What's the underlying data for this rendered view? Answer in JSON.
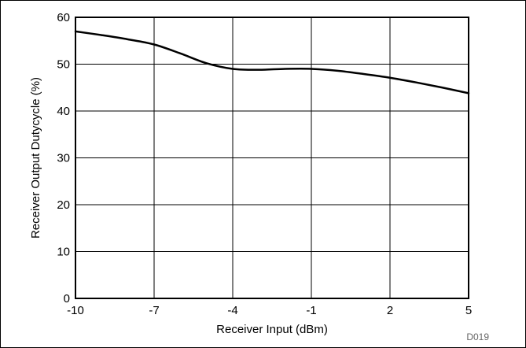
{
  "chart_data": {
    "type": "line",
    "xlabel": "Receiver Input (dBm)",
    "ylabel": "Receiver Output Dutycycle (%)",
    "xlim": [
      -10,
      5
    ],
    "ylim": [
      0,
      60
    ],
    "xticks": [
      -10,
      -7,
      -4,
      -1,
      2,
      5
    ],
    "yticks": [
      0,
      10,
      20,
      30,
      40,
      50,
      60
    ],
    "grid": true,
    "series": [
      {
        "color": "#000000",
        "x": [
          -10,
          -9,
          -8,
          -7,
          -6,
          -5,
          -4,
          -3,
          -2,
          -1,
          0,
          1,
          2,
          3,
          4,
          5
        ],
        "y": [
          57,
          56.2,
          55.3,
          54.2,
          52.3,
          50.2,
          49.0,
          48.8,
          49.0,
          49.0,
          48.6,
          47.9,
          47.1,
          46.1,
          45.0,
          43.8
        ]
      }
    ]
  },
  "figure_id": "D019"
}
